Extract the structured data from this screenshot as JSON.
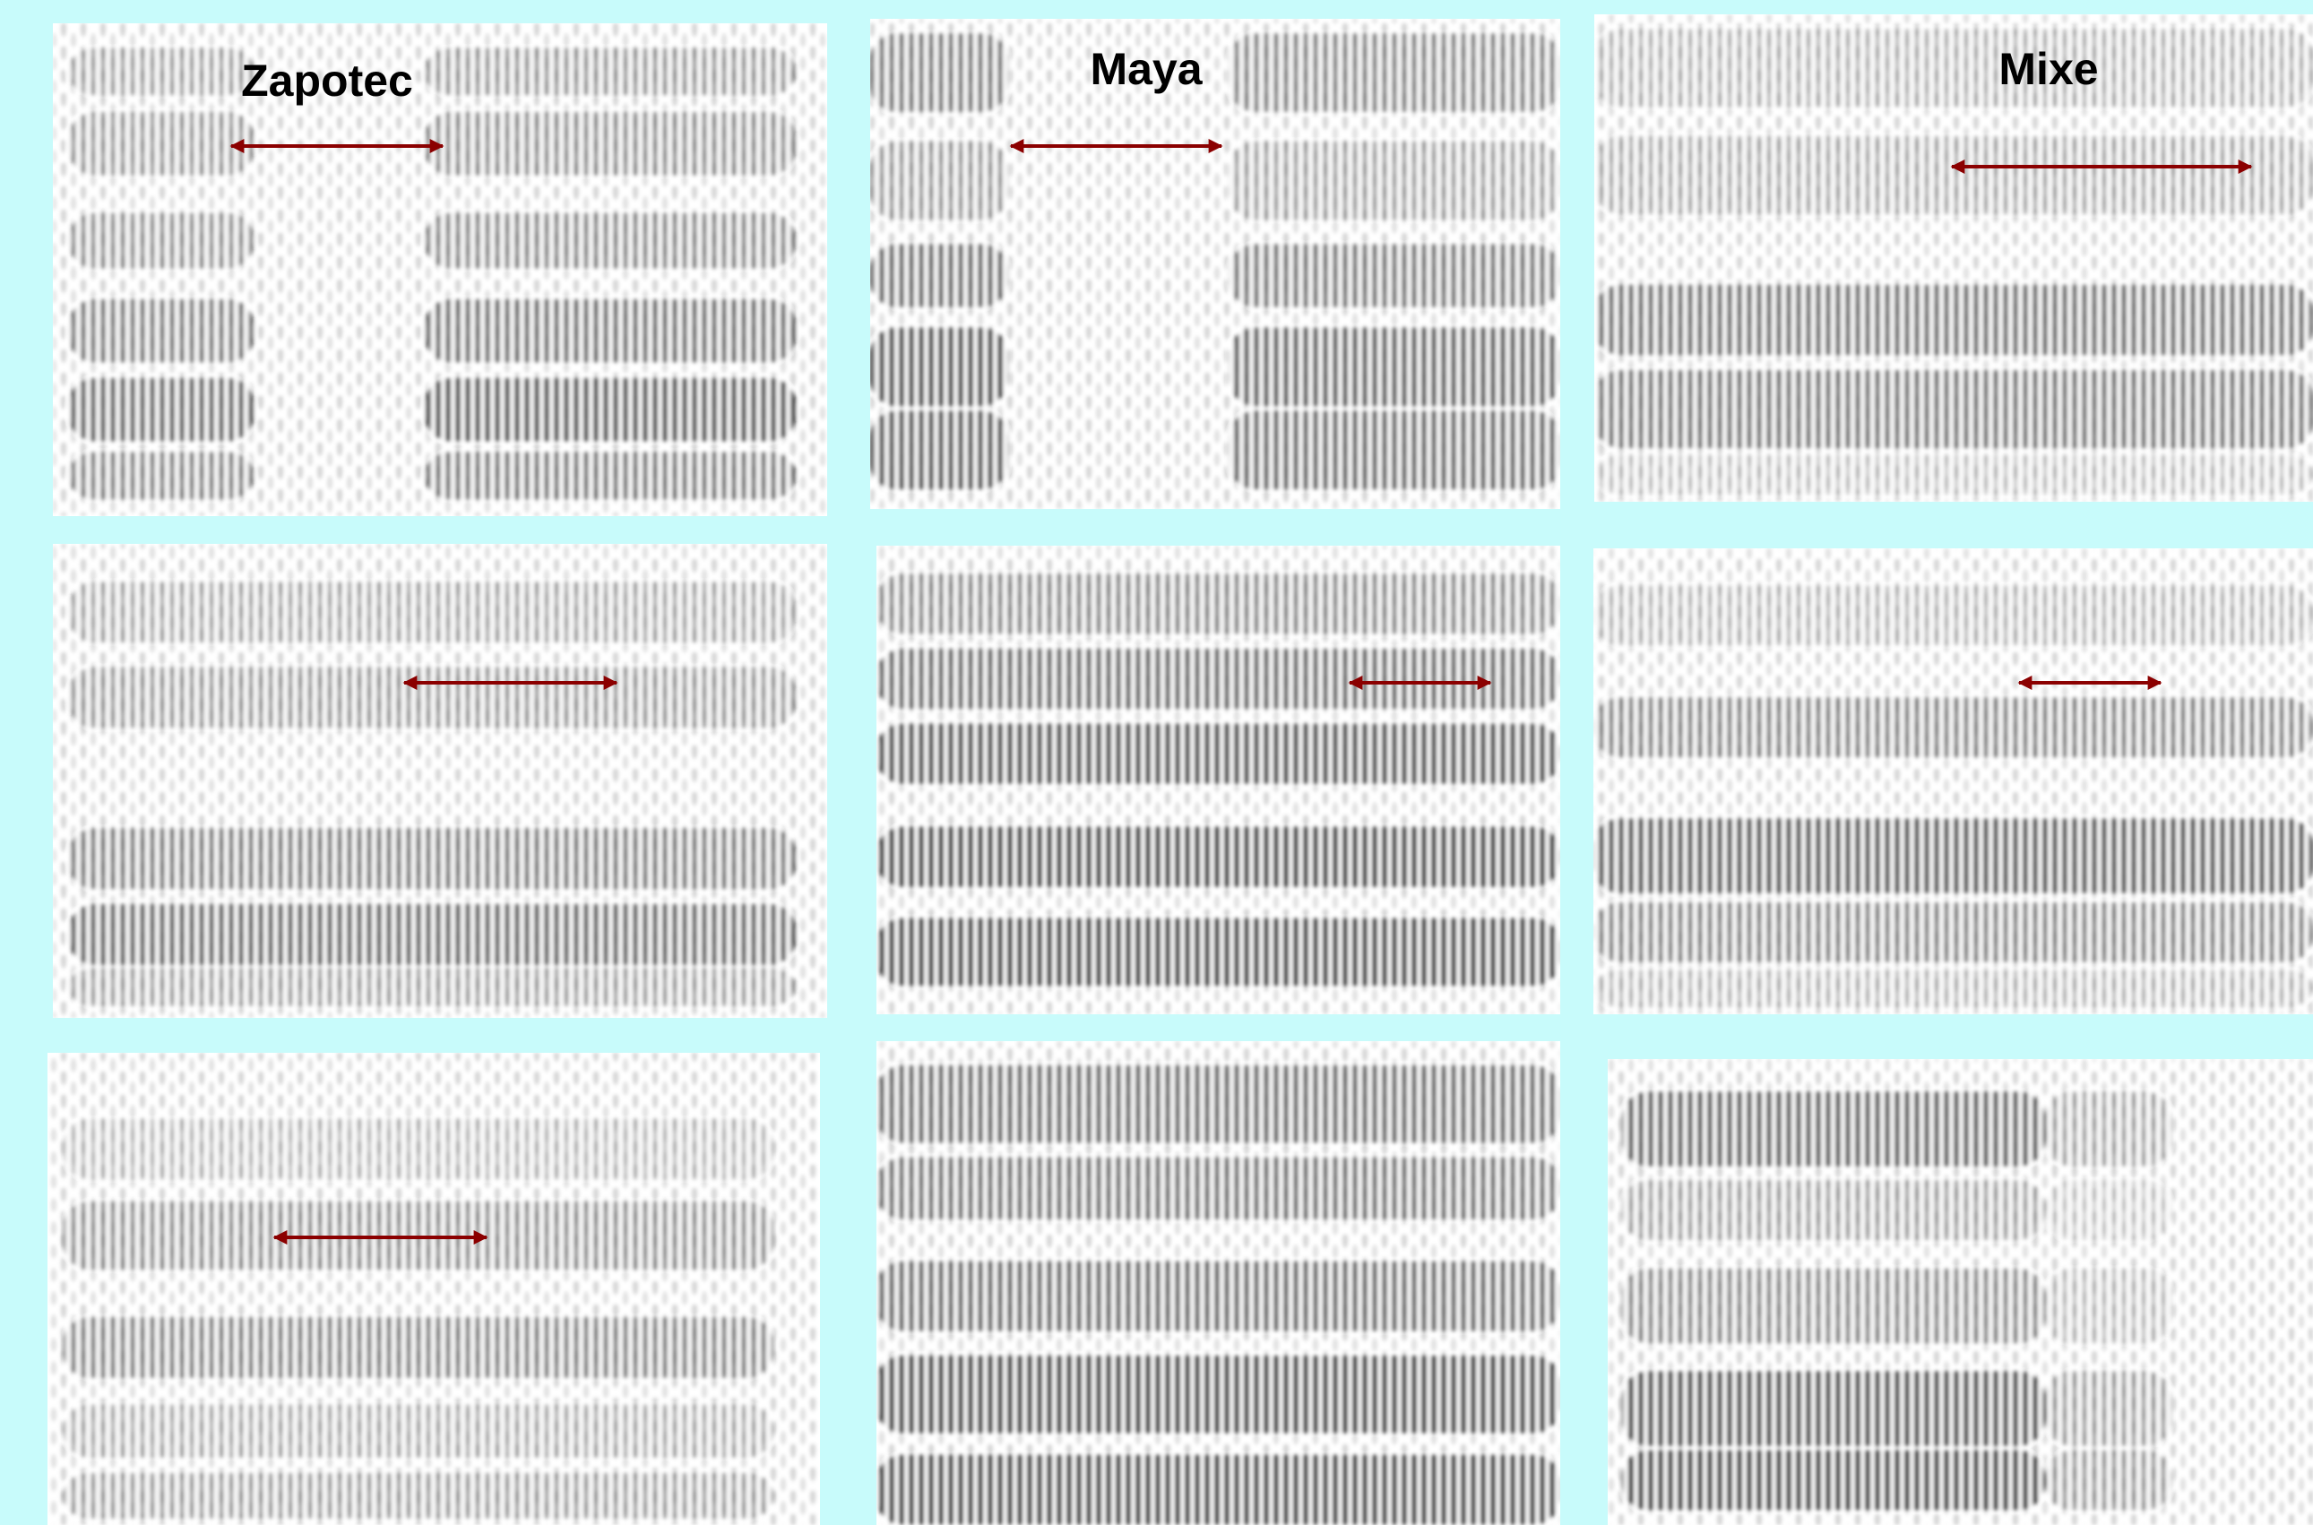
{
  "columns": [
    {
      "label": "Zapotec"
    },
    {
      "label": "Maya"
    },
    {
      "label": "Mixe"
    }
  ]
}
